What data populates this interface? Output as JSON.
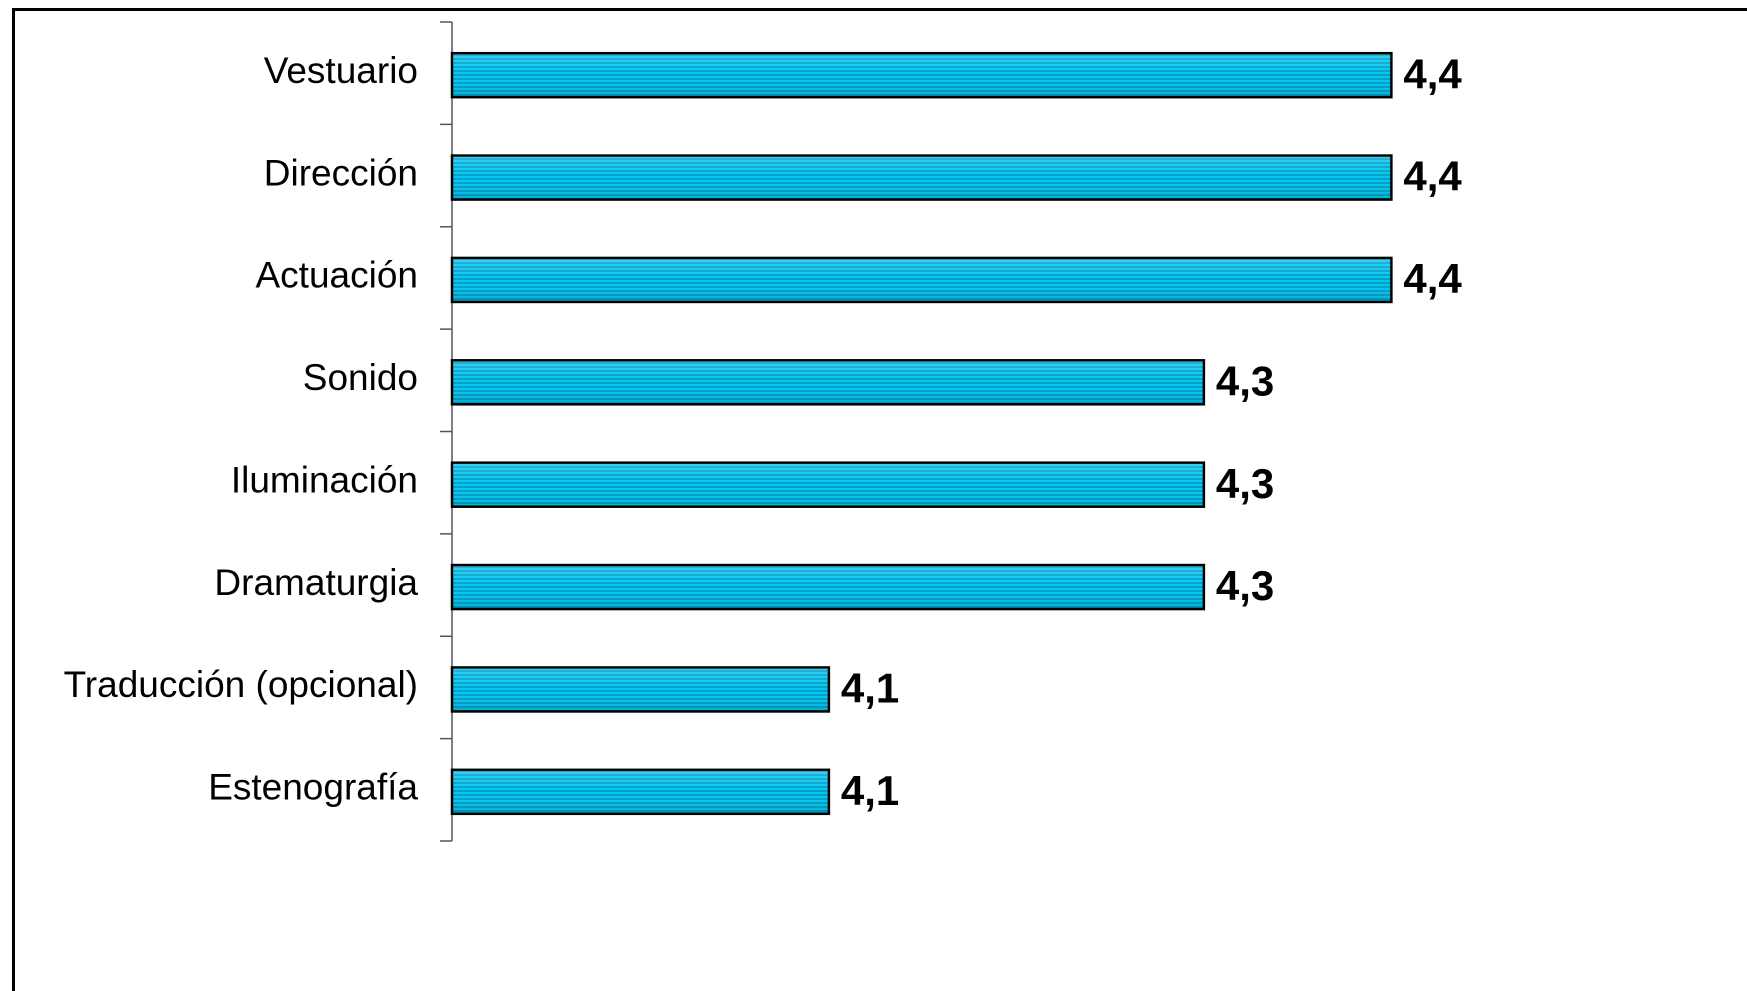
{
  "chart_data": {
    "type": "bar",
    "orientation": "horizontal",
    "categories": [
      "Vestuario",
      "Dirección",
      "Actuación",
      "Sonido",
      "Iluminación",
      "Dramaturgia",
      "Traducción (opcional)",
      "Estenografía"
    ],
    "values": [
      4.4,
      4.4,
      4.4,
      4.3,
      4.3,
      4.3,
      4.1,
      4.1
    ],
    "value_labels": [
      "4,4",
      "4,4",
      "4,4",
      "4,3",
      "4,3",
      "4,3",
      "4,1",
      "4,1"
    ],
    "xlim": [
      3.9,
      4.5
    ],
    "title": "",
    "xlabel": "",
    "ylabel": "",
    "grid": false,
    "legend": "none",
    "bar_color": "#00BFEA",
    "bar_edge_color": "#000000"
  }
}
